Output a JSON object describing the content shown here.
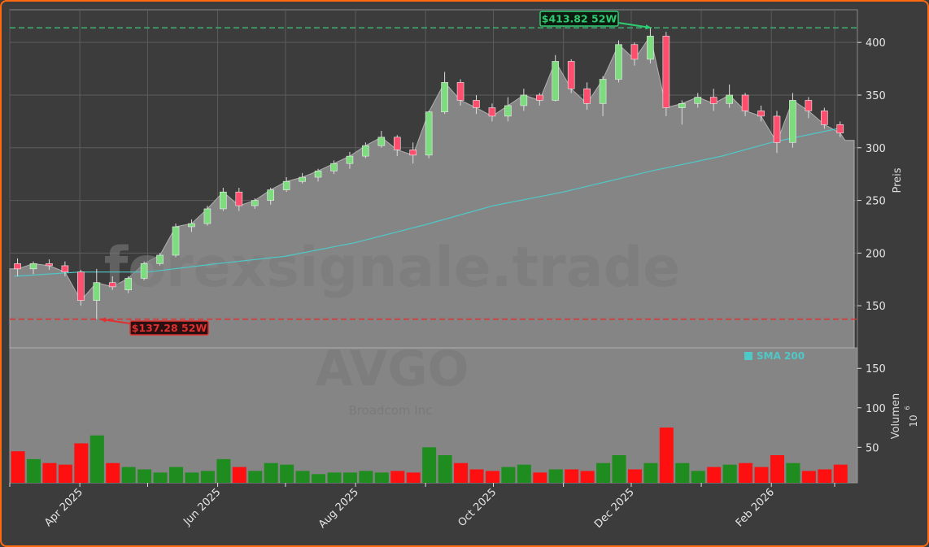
{
  "chart_data": {
    "type": "candlestick",
    "ticker": "AVGO",
    "company": "Broadcom Inc",
    "watermark": "forexsignale.trade",
    "price_axis_label": "Preis",
    "volume_axis_label": "Volumen",
    "volume_unit": "10",
    "volume_unit_exp": "6",
    "price_ylim": [
      110,
      431
    ],
    "volume_ylim": [
      5,
      176
    ],
    "price_ticks": [
      150,
      200,
      250,
      300,
      350,
      400
    ],
    "volume_ticks": [
      50,
      100,
      150
    ],
    "x_range": [
      "2025-03-01",
      "2026-03-10"
    ],
    "x_ticks": [
      {
        "date": "2025-03-01",
        "label": ""
      },
      {
        "date": "2025-04-01",
        "label": "Apr 2025"
      },
      {
        "date": "2025-05-01",
        "label": ""
      },
      {
        "date": "2025-06-01",
        "label": "Jun 2025"
      },
      {
        "date": "2025-07-01",
        "label": ""
      },
      {
        "date": "2025-08-01",
        "label": "Aug 2025"
      },
      {
        "date": "2025-09-01",
        "label": ""
      },
      {
        "date": "2025-10-01",
        "label": "Oct 2025"
      },
      {
        "date": "2025-11-01",
        "label": ""
      },
      {
        "date": "2025-12-01",
        "label": "Dec 2025"
      },
      {
        "date": "2026-01-01",
        "label": ""
      },
      {
        "date": "2026-02-01",
        "label": "Feb 2026"
      },
      {
        "date": "2026-03-01",
        "label": ""
      }
    ],
    "grid": true,
    "colors": {
      "up": "#7ddc7d",
      "down": "#ff4d6d",
      "vol_up": "#1e8c1e",
      "vol_down": "#ff1010",
      "sma": "#4fc8c8",
      "high": "#2ecc71",
      "low": "#e03030",
      "area": "#858585",
      "panel": "#3c3c3c"
    },
    "high_52w": {
      "value": 413.82,
      "date": "2025-12-10",
      "label": "$413.82 52W"
    },
    "low_52w": {
      "value": 137.28,
      "date": "2025-04-07",
      "label": "$137.28 52W"
    },
    "last_price_level": 307,
    "legend": {
      "label": "SMA 200",
      "position": "top-right of volume panel"
    },
    "candles": [
      [
        "2025-03-03",
        190,
        195,
        178,
        185,
        45
      ],
      [
        "2025-03-10",
        185,
        192,
        180,
        190,
        35
      ],
      [
        "2025-03-17",
        190,
        194,
        184,
        188,
        30
      ],
      [
        "2025-03-24",
        188,
        192,
        178,
        182,
        28
      ],
      [
        "2025-03-31",
        182,
        184,
        150,
        155,
        55
      ],
      [
        "2025-04-07",
        155,
        185,
        137.28,
        172,
        65
      ],
      [
        "2025-04-14",
        172,
        178,
        165,
        168,
        30
      ],
      [
        "2025-04-21",
        165,
        178,
        162,
        176,
        25
      ],
      [
        "2025-04-28",
        176,
        192,
        174,
        190,
        22
      ],
      [
        "2025-05-05",
        190,
        200,
        188,
        198,
        18
      ],
      [
        "2025-05-12",
        198,
        228,
        196,
        225,
        25
      ],
      [
        "2025-05-19",
        225,
        232,
        220,
        228,
        18
      ],
      [
        "2025-05-26",
        228,
        245,
        226,
        242,
        20
      ],
      [
        "2025-06-02",
        242,
        262,
        240,
        258,
        35
      ],
      [
        "2025-06-09",
        258,
        262,
        240,
        245,
        25
      ],
      [
        "2025-06-16",
        245,
        252,
        242,
        250,
        20
      ],
      [
        "2025-06-23",
        250,
        262,
        246,
        260,
        30
      ],
      [
        "2025-06-30",
        260,
        272,
        258,
        268,
        28
      ],
      [
        "2025-07-07",
        268,
        276,
        266,
        272,
        20
      ],
      [
        "2025-07-14",
        272,
        280,
        268,
        278,
        16
      ],
      [
        "2025-07-21",
        278,
        288,
        275,
        285,
        18
      ],
      [
        "2025-07-28",
        285,
        296,
        280,
        292,
        18
      ],
      [
        "2025-08-04",
        292,
        305,
        290,
        302,
        20
      ],
      [
        "2025-08-11",
        302,
        316,
        300,
        310,
        18
      ],
      [
        "2025-08-18",
        310,
        312,
        292,
        298,
        20
      ],
      [
        "2025-08-25",
        298,
        305,
        285,
        293,
        18
      ],
      [
        "2025-09-01",
        293,
        335,
        290,
        334,
        50
      ],
      [
        "2025-09-08",
        334,
        372,
        332,
        362,
        40
      ],
      [
        "2025-09-15",
        362,
        365,
        340,
        345,
        30
      ],
      [
        "2025-09-22",
        345,
        350,
        332,
        338,
        22
      ],
      [
        "2025-09-29",
        338,
        342,
        325,
        330,
        20
      ],
      [
        "2025-10-06",
        330,
        348,
        325,
        340,
        25
      ],
      [
        "2025-10-13",
        340,
        356,
        335,
        350,
        28
      ],
      [
        "2025-10-20",
        350,
        352,
        340,
        345,
        18
      ],
      [
        "2025-10-27",
        345,
        388,
        344,
        382,
        22
      ],
      [
        "2025-11-03",
        382,
        384,
        352,
        356,
        22
      ],
      [
        "2025-11-10",
        356,
        362,
        336,
        342,
        20
      ],
      [
        "2025-11-17",
        342,
        368,
        330,
        365,
        30
      ],
      [
        "2025-11-24",
        365,
        402,
        362,
        398,
        40
      ],
      [
        "2025-12-01",
        398,
        400,
        378,
        384,
        22
      ],
      [
        "2025-12-08",
        384,
        413.82,
        380,
        406,
        30
      ],
      [
        "2025-12-15",
        406,
        410,
        330,
        338,
        75
      ],
      [
        "2025-12-22",
        338,
        345,
        322,
        342,
        30
      ],
      [
        "2025-12-29",
        342,
        352,
        338,
        348,
        20
      ],
      [
        "2026-01-05",
        348,
        356,
        335,
        342,
        25
      ],
      [
        "2026-01-12",
        342,
        360,
        338,
        350,
        28
      ],
      [
        "2026-01-19",
        350,
        352,
        330,
        335,
        30
      ],
      [
        "2026-01-26",
        335,
        340,
        325,
        330,
        25
      ],
      [
        "2026-02-02",
        330,
        335,
        295,
        305,
        40
      ],
      [
        "2026-02-09",
        305,
        352,
        300,
        345,
        30
      ],
      [
        "2026-02-16",
        345,
        348,
        328,
        335,
        20
      ],
      [
        "2026-02-23",
        335,
        338,
        318,
        322,
        22
      ],
      [
        "2026-03-02",
        322,
        325,
        310,
        314,
        28
      ]
    ],
    "sma200": [
      [
        "2025-03-03",
        178
      ],
      [
        "2025-04-01",
        182
      ],
      [
        "2025-05-01",
        182
      ],
      [
        "2025-06-01",
        190
      ],
      [
        "2025-07-01",
        197
      ],
      [
        "2025-08-01",
        210
      ],
      [
        "2025-09-01",
        227
      ],
      [
        "2025-10-01",
        245
      ],
      [
        "2025-11-01",
        258
      ],
      [
        "2025-12-10",
        278
      ],
      [
        "2026-01-10",
        292
      ],
      [
        "2026-02-01",
        305
      ],
      [
        "2026-03-02",
        318
      ]
    ]
  }
}
